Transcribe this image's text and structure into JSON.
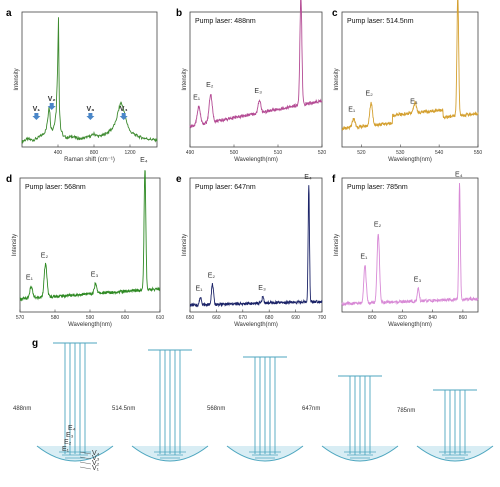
{
  "colors": {
    "a": "#3d8a2f",
    "b": "#b44b94",
    "c": "#d4a030",
    "d": "#2f8a24",
    "e": "#1c2468",
    "f": "#d88ad6",
    "diagram": "#4da6bf",
    "arrow": "#4a86c8"
  },
  "chart_data": [
    {
      "panel": "a",
      "type": "line",
      "xlabel": "Raman shift (cm⁻¹)",
      "ylabel": "Intensity",
      "xlim": [
        0,
        1500
      ],
      "xticks": [
        "400",
        "800",
        "1200"
      ],
      "x": [
        0,
        60,
        120,
        180,
        220,
        250,
        270,
        290,
        300,
        310,
        320,
        340,
        360,
        380,
        395,
        405,
        415,
        430,
        460,
        500,
        560,
        600,
        650,
        700,
        760,
        800,
        850,
        900,
        950,
        1000,
        1040,
        1070,
        1100,
        1130,
        1160,
        1200,
        1260,
        1330,
        1400,
        1500
      ],
      "y": [
        2,
        4,
        3,
        5,
        7,
        9,
        12,
        22,
        30,
        24,
        14,
        11,
        16,
        26,
        58,
        100,
        30,
        12,
        6,
        5,
        6,
        5,
        4,
        5,
        6,
        8,
        6,
        7,
        9,
        12,
        17,
        26,
        33,
        27,
        18,
        10,
        7,
        5,
        4,
        3
      ],
      "annotations": [
        {
          "text": "V₁",
          "x": 160
        },
        {
          "text": "V₂",
          "x": 330
        },
        {
          "text": "V₃",
          "x": 760
        },
        {
          "text": "V₄",
          "x": 1130
        }
      ]
    },
    {
      "panel": "b",
      "type": "line",
      "pump": "Pump laser: 488nm",
      "xlabel": "Wavelength(nm)",
      "ylabel": "Intensity",
      "xlim": [
        490,
        520
      ],
      "xticks": [
        "490",
        "500",
        "510",
        "520"
      ],
      "baseline": [
        14,
        34
      ],
      "peaks": [
        {
          "x": 492.0,
          "h": 14,
          "w": 0.35
        },
        {
          "x": 494.7,
          "h": 22,
          "w": 0.35
        },
        {
          "x": 505.8,
          "h": 10,
          "w": 0.3
        },
        {
          "x": 515.2,
          "h": 86,
          "w": 0.22
        }
      ],
      "labels": [
        {
          "text": "E₁",
          "x": 491.5
        },
        {
          "text": "E₂",
          "x": 494.5
        },
        {
          "text": "E₃",
          "x": 505.5
        },
        {
          "text": "E₄",
          "x": 514.7
        }
      ]
    },
    {
      "panel": "c",
      "type": "line",
      "pump": "Pump laser: 514.5nm",
      "xlabel": "Wavelength(nm)",
      "ylabel": "Intensity",
      "xlim": [
        515,
        550
      ],
      "xticks": [
        "520",
        "530",
        "540",
        "550"
      ],
      "baseline": [
        12,
        24
      ],
      "peaks": [
        {
          "x": 518.0,
          "h": 7,
          "w": 0.35
        },
        {
          "x": 522.5,
          "h": 18,
          "w": 0.35
        },
        {
          "x": 533.8,
          "h": 8,
          "w": 0.35
        },
        {
          "x": 544.8,
          "h": 96,
          "w": 0.22
        }
      ],
      "labels": [
        {
          "text": "E₁",
          "x": 517.5
        },
        {
          "text": "E₂",
          "x": 522.0
        },
        {
          "text": "E₃",
          "x": 533.5
        },
        {
          "text": "E₄",
          "x": 544.5
        }
      ]
    },
    {
      "panel": "d",
      "type": "line",
      "pump": "Pump laser: 568nm",
      "xlabel": "Wavelength(nm)",
      "ylabel": "Intensity",
      "xlim": [
        570,
        610
      ],
      "xticks": [
        "570",
        "580",
        "590",
        "600",
        "610"
      ],
      "baseline": [
        8,
        16
      ],
      "peaks": [
        {
          "x": 573.2,
          "h": 9,
          "w": 0.4
        },
        {
          "x": 577.3,
          "h": 26,
          "w": 0.4
        },
        {
          "x": 591.6,
          "h": 8,
          "w": 0.35
        },
        {
          "x": 605.7,
          "h": 96,
          "w": 0.25
        }
      ],
      "labels": [
        {
          "text": "E₁",
          "x": 572.7
        },
        {
          "text": "E₂",
          "x": 577.0
        },
        {
          "text": "E₃",
          "x": 591.3
        },
        {
          "text": "E₄",
          "x": 605.4
        }
      ]
    },
    {
      "panel": "e",
      "type": "line",
      "pump": "Pump laser: 647nm",
      "xlabel": "Wavelength(nm)",
      "ylabel": "Intensity",
      "xlim": [
        650,
        700
      ],
      "xticks": [
        "650",
        "660",
        "670",
        "680",
        "690",
        "700"
      ],
      "baseline": [
        3,
        6
      ],
      "peaks": [
        {
          "x": 654.0,
          "h": 6,
          "w": 0.4
        },
        {
          "x": 658.5,
          "h": 16,
          "w": 0.4
        },
        {
          "x": 677.6,
          "h": 5,
          "w": 0.35
        },
        {
          "x": 695.0,
          "h": 92,
          "w": 0.25
        }
      ],
      "labels": [
        {
          "text": "E₁",
          "x": 653.4
        },
        {
          "text": "E₂",
          "x": 658.1
        },
        {
          "text": "E₃",
          "x": 677.3
        },
        {
          "text": "E₄",
          "x": 694.7
        }
      ]
    },
    {
      "panel": "f",
      "type": "line",
      "pump": "Pump laser: 785nm",
      "xlabel": "Wavelength(nm)",
      "ylabel": "Intensity",
      "xlim": [
        780,
        870
      ],
      "xticks": [
        "800",
        "820",
        "840",
        "860"
      ],
      "baseline": [
        4,
        8
      ],
      "peaks": [
        {
          "x": 795.2,
          "h": 30,
          "w": 0.8
        },
        {
          "x": 804.0,
          "h": 55,
          "w": 0.8
        },
        {
          "x": 830.5,
          "h": 10,
          "w": 0.6
        },
        {
          "x": 857.8,
          "h": 92,
          "w": 0.5
        }
      ],
      "labels": [
        {
          "text": "E₁",
          "x": 794.5
        },
        {
          "text": "E₂",
          "x": 803.5
        },
        {
          "text": "E₃",
          "x": 830.0
        },
        {
          "text": "E₄",
          "x": 857.3
        }
      ]
    }
  ],
  "diagram": {
    "panel": "g",
    "items": [
      {
        "label": "488nm"
      },
      {
        "label": "514.5nm"
      },
      {
        "label": "568nm"
      },
      {
        "label": "647nm"
      },
      {
        "label": "785nm"
      }
    ],
    "levels": [
      "E₄",
      "E₃",
      "E₂",
      "E₁"
    ],
    "vib": [
      "V₄",
      "V₃",
      "V₂",
      "V₁"
    ]
  }
}
